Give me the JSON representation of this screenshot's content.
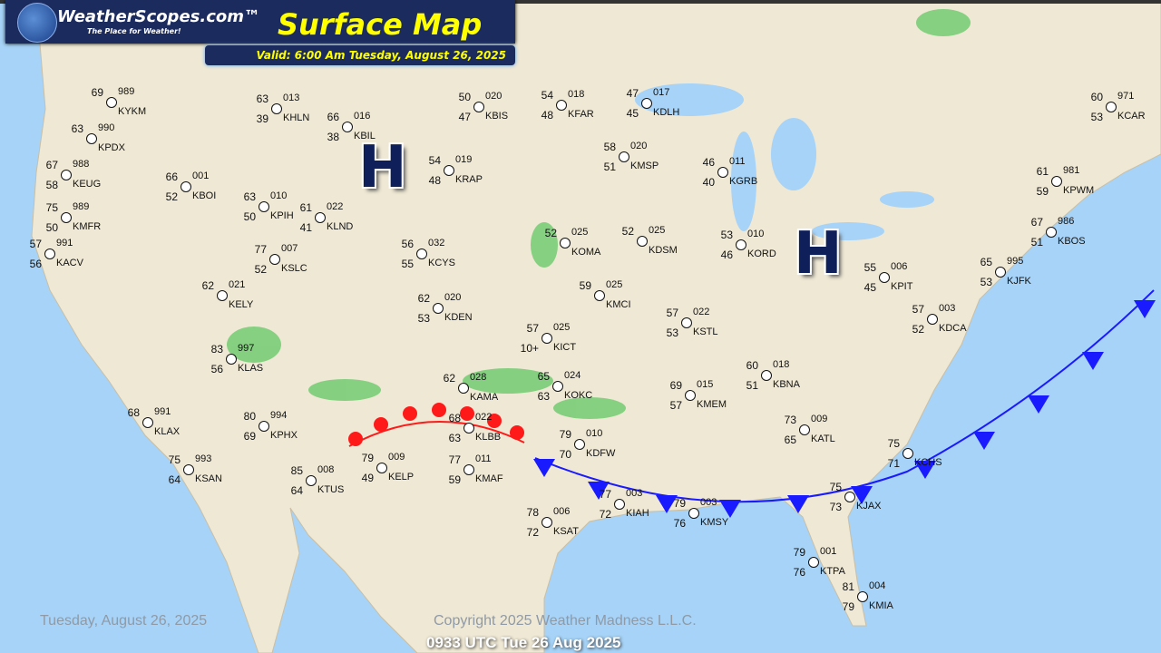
{
  "header": {
    "brand": "WeatherScopes.com™",
    "tagline": "The Place for Weather!",
    "title": "Surface Map",
    "valid": "Valid: 6:00 Am Tuesday, August 26, 2025"
  },
  "footer": {
    "date": "Tuesday, August 26, 2025",
    "copyright": "Copyright 2025 Weather Madness L.L.C.",
    "utc": "0933 UTC Tue 26 Aug 2025"
  },
  "pressure_centers": [
    {
      "label": "H"
    },
    {
      "label": "H"
    }
  ],
  "fronts": [
    {
      "type": "cold",
      "color": "#1a1aff"
    },
    {
      "type": "warm",
      "color": "#ff1a1a"
    }
  ],
  "colors": {
    "ocean": "#a6d3f7",
    "land": "#efe8d4",
    "header": "#1c2b5e",
    "title": "#ffff00"
  },
  "stations": [
    {
      "id": "KEUG",
      "t": "67",
      "d": "58",
      "p": "988"
    },
    {
      "id": "KMFR",
      "t": "75",
      "d": "50",
      "p": "989"
    },
    {
      "id": "KACV",
      "t": "57",
      "d": "56",
      "p": "991"
    },
    {
      "id": "KPDX",
      "t": "63",
      "d": "",
      "p": "990"
    },
    {
      "id": "KYKM",
      "t": "69",
      "d": "",
      "p": "989"
    },
    {
      "id": "KBOI",
      "t": "66",
      "d": "52",
      "p": "001"
    },
    {
      "id": "KPIH",
      "t": "63",
      "d": "50",
      "p": "010"
    },
    {
      "id": "KHLN",
      "t": "63",
      "d": "39",
      "p": "013"
    },
    {
      "id": "KBIL",
      "t": "66",
      "d": "38",
      "p": "016"
    },
    {
      "id": "KLND",
      "t": "61",
      "d": "41",
      "p": "022"
    },
    {
      "id": "KBIS",
      "t": "50",
      "d": "47",
      "p": "020"
    },
    {
      "id": "KFAR",
      "t": "54",
      "d": "48",
      "p": "018"
    },
    {
      "id": "KDLH",
      "t": "47",
      "d": "45",
      "p": "017"
    },
    {
      "id": "KMSP",
      "t": "58",
      "d": "51",
      "p": "020"
    },
    {
      "id": "KRAP",
      "t": "54",
      "d": "48",
      "p": "019"
    },
    {
      "id": "KSLC",
      "t": "77",
      "d": "52",
      "p": "007"
    },
    {
      "id": "KELY",
      "t": "62",
      "d": "",
      "p": "021"
    },
    {
      "id": "KCYS",
      "t": "56",
      "d": "55",
      "p": "032"
    },
    {
      "id": "KDEN",
      "t": "62",
      "d": "53",
      "p": "020"
    },
    {
      "id": "KLAS",
      "t": "83",
      "d": "56",
      "p": "997"
    },
    {
      "id": "KLAX",
      "t": "68",
      "d": "",
      "p": "991"
    },
    {
      "id": "KSAN",
      "t": "75",
      "d": "64",
      "p": "993"
    },
    {
      "id": "KPHX",
      "t": "80",
      "d": "69",
      "p": "994"
    },
    {
      "id": "KTUS",
      "t": "85",
      "d": "64",
      "p": "008"
    },
    {
      "id": "KELP",
      "t": "79",
      "d": "49",
      "p": "009"
    },
    {
      "id": "KMAF",
      "t": "77",
      "d": "59",
      "p": "011"
    },
    {
      "id": "KLBB",
      "t": "68",
      "d": "63",
      "p": "022"
    },
    {
      "id": "KAMA",
      "t": "62",
      "d": "",
      "p": "028"
    },
    {
      "id": "KOKC",
      "t": "65",
      "d": "63",
      "p": "024"
    },
    {
      "id": "KICT",
      "t": "57",
      "d": "10+",
      "p": "025"
    },
    {
      "id": "KDFW",
      "t": "79",
      "d": "70",
      "p": "010"
    },
    {
      "id": "KSAT",
      "t": "78",
      "d": "72",
      "p": "006"
    },
    {
      "id": "KIAH",
      "t": "77",
      "d": "72",
      "p": "003"
    },
    {
      "id": "KMSY",
      "t": "79",
      "d": "76",
      "p": "003"
    },
    {
      "id": "KOMA",
      "t": "52",
      "d": "",
      "p": "025"
    },
    {
      "id": "KDSM",
      "t": "52",
      "d": "",
      "p": "025"
    },
    {
      "id": "KMCI",
      "t": "59",
      "d": "",
      "p": "025"
    },
    {
      "id": "KSTL",
      "t": "57",
      "d": "53",
      "p": "022"
    },
    {
      "id": "KMEM",
      "t": "69",
      "d": "57",
      "p": "015"
    },
    {
      "id": "KBNA",
      "t": "60",
      "d": "51",
      "p": "018"
    },
    {
      "id": "KATL",
      "t": "73",
      "d": "65",
      "p": "009"
    },
    {
      "id": "KJAX",
      "t": "75",
      "d": "73",
      "p": ""
    },
    {
      "id": "KTPA",
      "t": "79",
      "d": "76",
      "p": "001"
    },
    {
      "id": "KMIA",
      "t": "81",
      "d": "79",
      "p": "004"
    },
    {
      "id": "KCHS",
      "t": "75",
      "d": "71",
      "p": ""
    },
    {
      "id": "KGRB",
      "t": "46",
      "d": "40",
      "p": "011"
    },
    {
      "id": "KORD",
      "t": "53",
      "d": "46",
      "p": "010"
    },
    {
      "id": "KPIT",
      "t": "55",
      "d": "45",
      "p": "006"
    },
    {
      "id": "KDCA",
      "t": "57",
      "d": "52",
      "p": "003"
    },
    {
      "id": "KJFK",
      "t": "65",
      "d": "53",
      "p": "995"
    },
    {
      "id": "KBOS",
      "t": "67",
      "d": "51",
      "p": "986"
    },
    {
      "id": "KPWM",
      "t": "61",
      "d": "59",
      "p": "981"
    },
    {
      "id": "KCAR",
      "t": "60",
      "d": "53",
      "p": "971"
    }
  ]
}
